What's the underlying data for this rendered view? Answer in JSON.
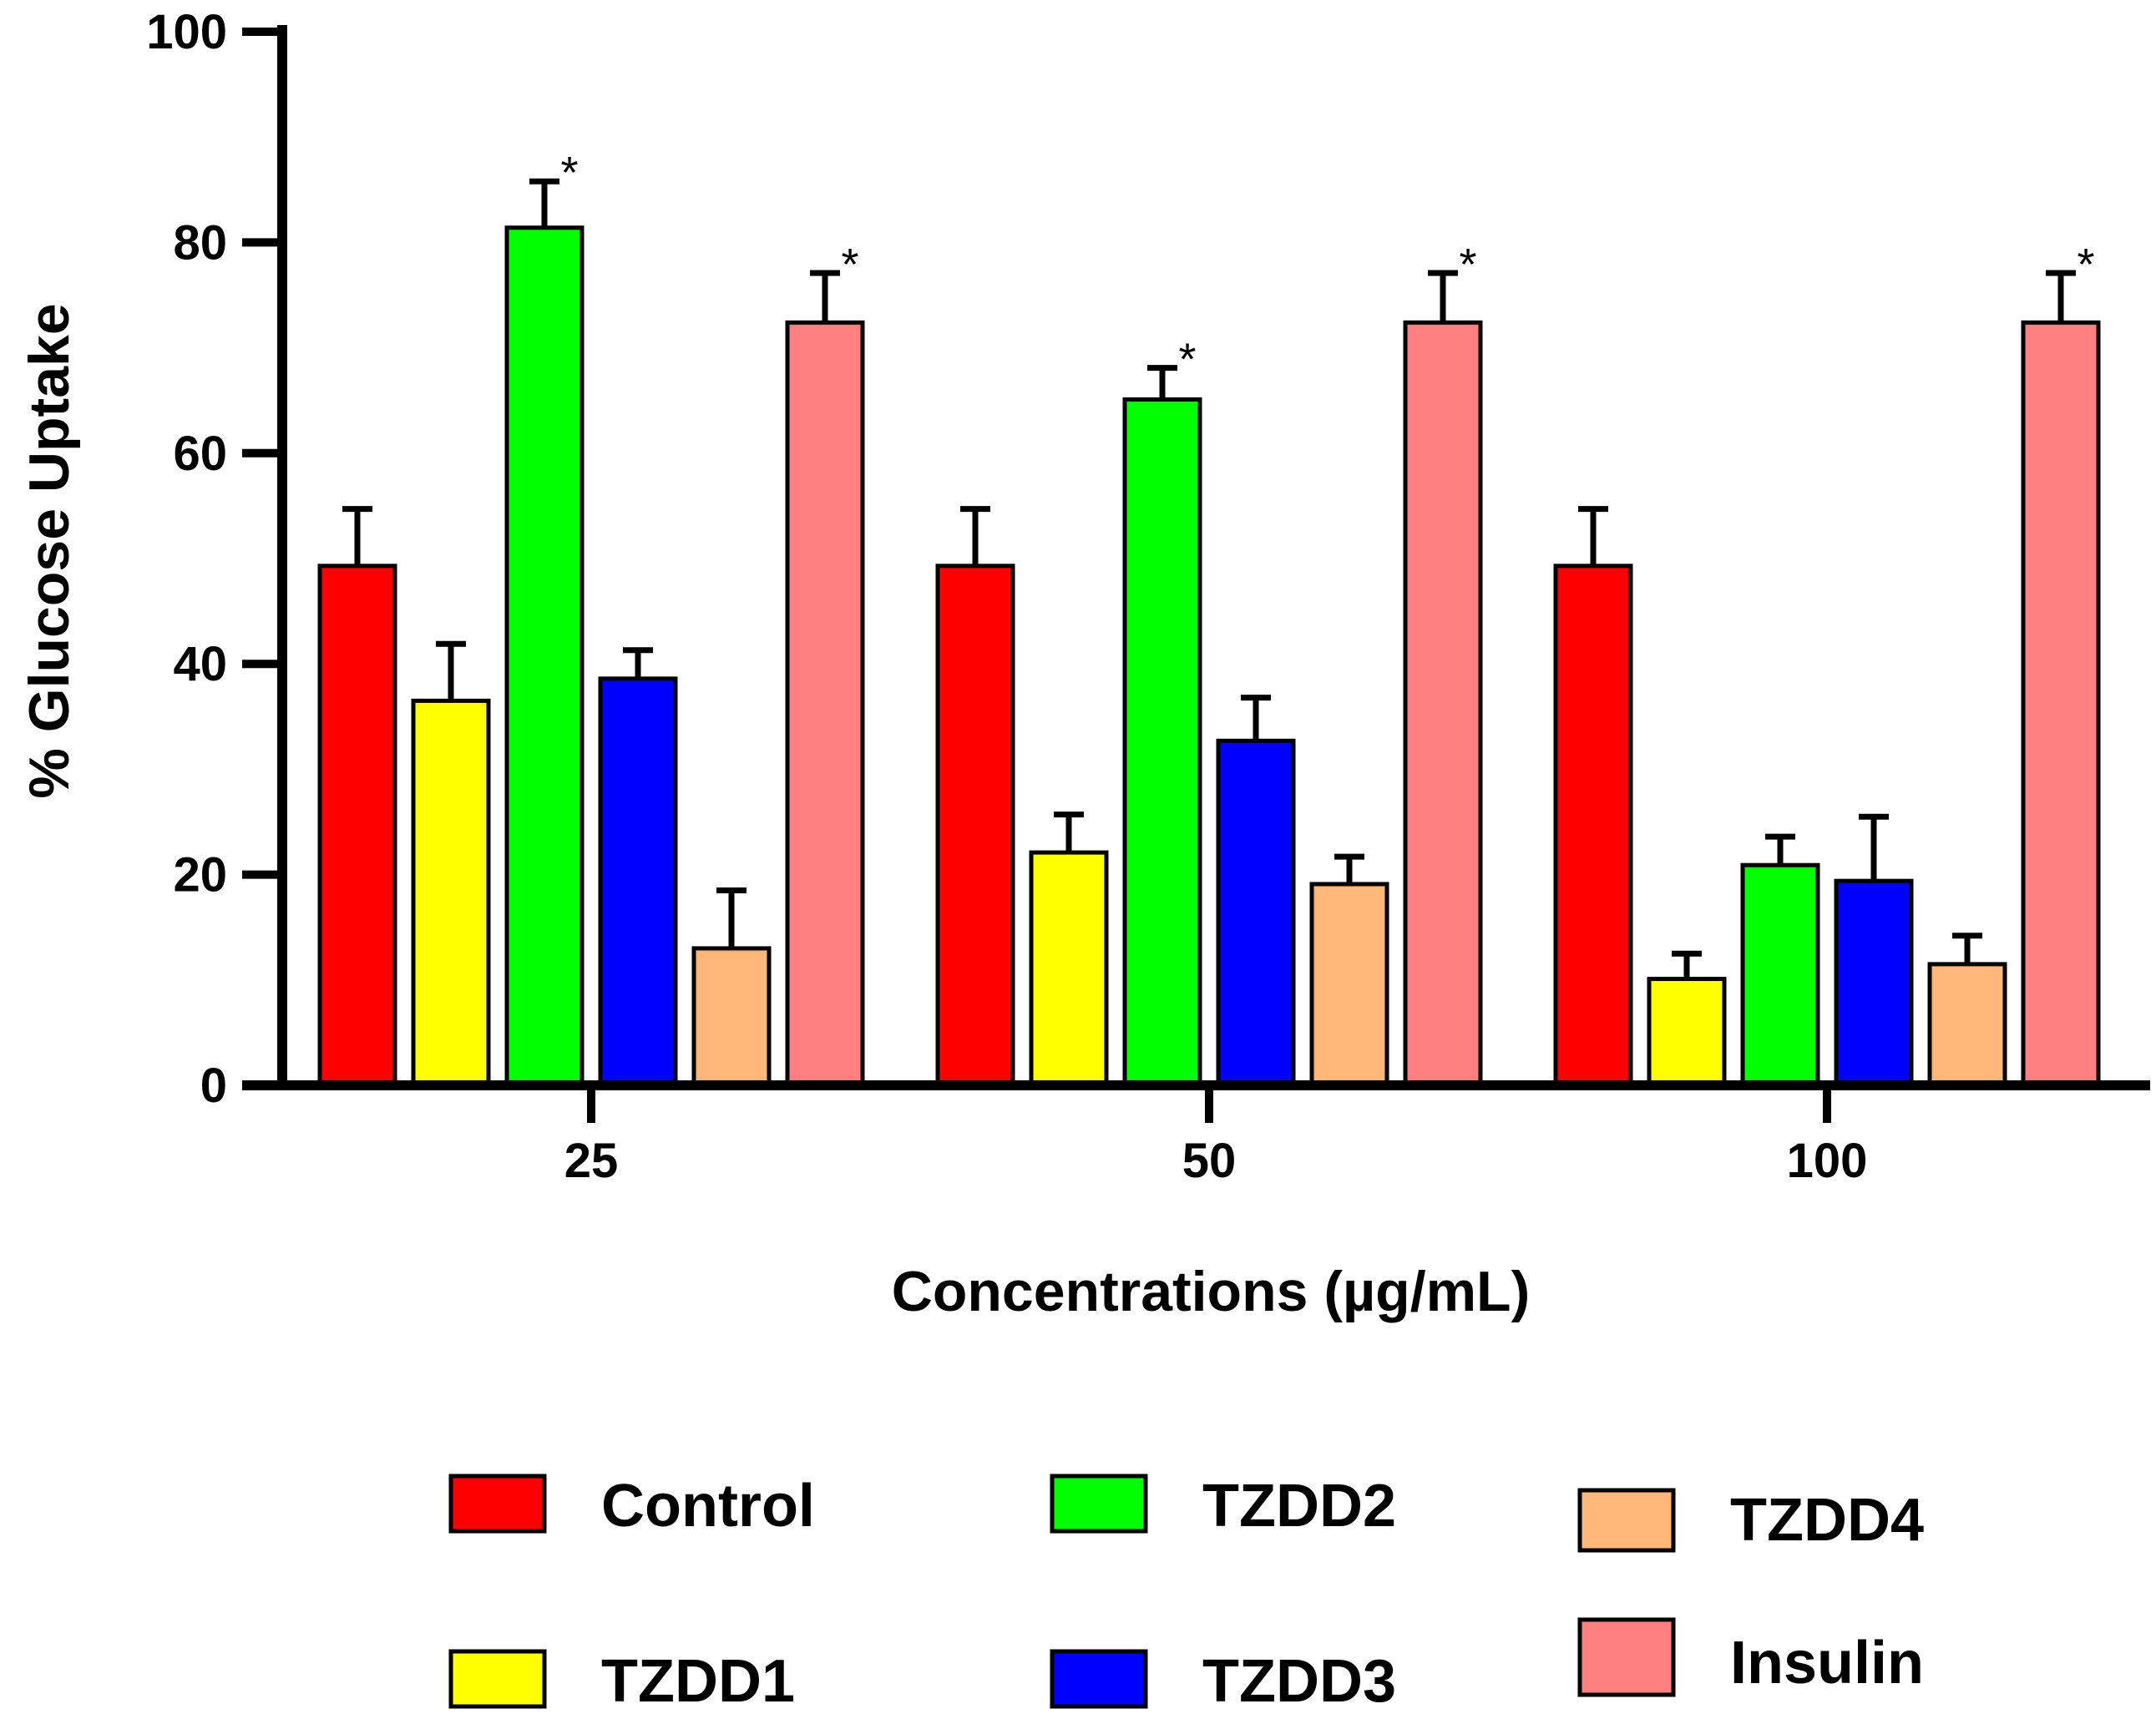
{
  "chart_data": {
    "type": "bar",
    "title": "",
    "xlabel": "Concentrations (µg/mL)",
    "ylabel": "% Glucose Uptake",
    "ylim": [
      0,
      100
    ],
    "yticks": [
      "0",
      "20",
      "40",
      "60",
      "80",
      "100"
    ],
    "categories": [
      "25",
      "50",
      "100"
    ],
    "grid": false,
    "legend_position": "bottom",
    "series": [
      {
        "name": "Control",
        "color": "#ff0000",
        "values": [
          49.3,
          49.3,
          49.3
        ],
        "errors": [
          5.4,
          5.4,
          5.4
        ],
        "significant": [
          false,
          false,
          false
        ]
      },
      {
        "name": "TZDD1",
        "color": "#ffff00",
        "values": [
          36.5,
          22.1,
          10.1
        ],
        "errors": [
          5.4,
          3.6,
          2.4
        ],
        "significant": [
          false,
          false,
          false
        ]
      },
      {
        "name": "TZDD2",
        "color": "#00ff00",
        "values": [
          81.4,
          65.1,
          20.9
        ],
        "errors": [
          4.4,
          3.0,
          2.7
        ],
        "significant": [
          true,
          true,
          false
        ]
      },
      {
        "name": "TZDD3",
        "color": "#0000ff",
        "values": [
          38.6,
          32.7,
          19.4
        ],
        "errors": [
          2.7,
          4.1,
          6.1
        ],
        "significant": [
          false,
          false,
          false
        ]
      },
      {
        "name": "TZDD4",
        "color": "#ffb87a",
        "values": [
          13.0,
          19.1,
          11.5
        ],
        "errors": [
          5.5,
          2.6,
          2.7
        ],
        "significant": [
          false,
          false,
          false
        ]
      },
      {
        "name": "Insulin",
        "color": "#ff8080",
        "values": [
          72.4,
          72.4,
          72.4
        ],
        "errors": [
          4.7,
          4.7,
          4.7
        ],
        "significant": [
          true,
          true,
          true
        ]
      }
    ],
    "significance_marker": "*"
  }
}
